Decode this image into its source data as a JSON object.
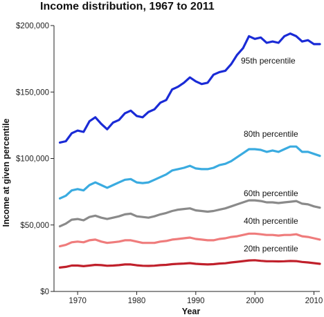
{
  "chart_data": {
    "type": "line",
    "title": "Income distribution, 1967 to 2011",
    "xlabel": "Year",
    "ylabel": "Income at given percentile",
    "xlim": [
      1966,
      2011
    ],
    "ylim": [
      0,
      200000
    ],
    "x_ticks": [
      1970,
      1980,
      1990,
      2000,
      2010
    ],
    "x_tick_labels": [
      "1970",
      "1980",
      "1990",
      "2000",
      "2010"
    ],
    "y_ticks": [
      0,
      50000,
      100000,
      150000,
      200000
    ],
    "y_tick_labels": [
      "$0",
      "$50,000",
      "$100,000",
      "$150,000",
      "$200,000"
    ],
    "grid": false,
    "x": [
      1967,
      1968,
      1969,
      1970,
      1971,
      1972,
      1973,
      1974,
      1975,
      1976,
      1977,
      1978,
      1979,
      1980,
      1981,
      1982,
      1983,
      1984,
      1985,
      1986,
      1987,
      1988,
      1989,
      1990,
      1991,
      1992,
      1993,
      1994,
      1995,
      1996,
      1997,
      1998,
      1999,
      2000,
      2001,
      2002,
      2003,
      2004,
      2005,
      2006,
      2007,
      2008,
      2009,
      2010,
      2011
    ],
    "series": [
      {
        "name": "95th percentile",
        "color": "#1a2bd6",
        "values": [
          112000,
          113000,
          119000,
          121000,
          120000,
          128000,
          131000,
          126000,
          122000,
          127000,
          129000,
          134000,
          136000,
          132000,
          131000,
          135000,
          137000,
          142000,
          144000,
          152000,
          154000,
          157000,
          161000,
          158000,
          156000,
          157000,
          163000,
          165000,
          166000,
          171000,
          178000,
          183000,
          192000,
          190000,
          191000,
          187000,
          188000,
          187000,
          192000,
          194000,
          192000,
          188000,
          189000,
          186000,
          186000
        ]
      },
      {
        "name": "80th percentile",
        "color": "#3aabe0",
        "values": [
          70000,
          72000,
          76000,
          77000,
          76000,
          80000,
          82000,
          80000,
          78000,
          80000,
          82000,
          84000,
          84500,
          82000,
          81500,
          82000,
          84000,
          86000,
          88000,
          91000,
          92000,
          93000,
          94500,
          92500,
          92000,
          92000,
          93000,
          95000,
          96000,
          98000,
          101000,
          104000,
          107000,
          107000,
          106500,
          105000,
          106000,
          105000,
          107000,
          109000,
          109000,
          105000,
          105000,
          103500,
          102000
        ]
      },
      {
        "name": "60th percentile",
        "color": "#8a8a8a",
        "values": [
          49000,
          51000,
          54000,
          54500,
          53500,
          56000,
          57000,
          55500,
          54500,
          55500,
          56500,
          58000,
          58500,
          56500,
          56000,
          55500,
          56500,
          58000,
          59000,
          60500,
          61500,
          62000,
          62500,
          61000,
          60500,
          60000,
          60500,
          61500,
          62500,
          64000,
          65500,
          67000,
          68500,
          68500,
          68000,
          67000,
          67000,
          66500,
          67000,
          67500,
          68000,
          66000,
          65500,
          64000,
          63000
        ]
      },
      {
        "name": "40th percentile",
        "color": "#ef7c7c",
        "values": [
          34000,
          35000,
          37000,
          37500,
          37000,
          38500,
          39000,
          37500,
          36500,
          37000,
          37500,
          38500,
          38500,
          37500,
          36500,
          36500,
          36500,
          37500,
          38000,
          39000,
          39500,
          40000,
          40500,
          39500,
          39000,
          38500,
          38500,
          39500,
          40000,
          41000,
          41500,
          42500,
          43500,
          43500,
          43000,
          42500,
          42500,
          42000,
          42500,
          42500,
          43000,
          41500,
          41000,
          40000,
          39000
        ]
      },
      {
        "name": "20th percentile",
        "color": "#c0202b",
        "values": [
          18000,
          18500,
          19500,
          19500,
          19000,
          19500,
          20000,
          19800,
          19300,
          19500,
          19800,
          20300,
          20300,
          19700,
          19300,
          19200,
          19400,
          19800,
          20000,
          20500,
          20800,
          21000,
          21300,
          20800,
          20500,
          20300,
          20500,
          21000,
          21200,
          21800,
          22300,
          22800,
          23300,
          23500,
          23000,
          22700,
          22700,
          22600,
          22700,
          22900,
          22800,
          22200,
          21800,
          21300,
          20800
        ]
      }
    ]
  }
}
